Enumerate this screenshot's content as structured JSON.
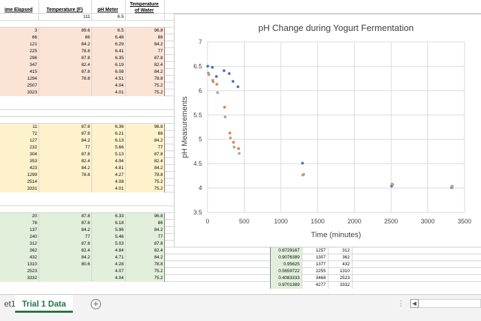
{
  "headers": {
    "time": "ime Elapsed",
    "temp": "Temperature (F)",
    "ph": "pH Meter",
    "water_line1": "Temperature",
    "water_line2": "of Water"
  },
  "subheader": {
    "temp": "111",
    "ph": "6.5"
  },
  "block1": [
    [
      "3",
      "89.6",
      "6.5",
      "96.8"
    ],
    [
      "66",
      "86",
      "6.48",
      "86"
    ],
    [
      "121",
      "84.2",
      "6.29",
      "84.2"
    ],
    [
      "225",
      "78.8",
      "6.41",
      "77"
    ],
    [
      "296",
      "87.8",
      "6.35",
      "87.8"
    ],
    [
      "347",
      "82.4",
      "6.19",
      "82.4"
    ],
    [
      "415",
      "87.8",
      "6.08",
      "84.2"
    ],
    [
      "1294",
      "78.8",
      "4.51",
      "78.8"
    ],
    [
      "2507",
      "",
      "4.04",
      "75.2"
    ],
    [
      "3323",
      "",
      "4.01",
      "75.2"
    ]
  ],
  "block2": [
    [
      "11",
      "87.8",
      "6.36",
      "96.8"
    ],
    [
      "72",
      "87.8",
      "6.21",
      "86"
    ],
    [
      "127",
      "84.2",
      "6.13",
      "84.2"
    ],
    [
      "232",
      "77",
      "5.66",
      "77"
    ],
    [
      "304",
      "87.8",
      "5.13",
      "87.8"
    ],
    [
      "353",
      "82.4",
      "4.94",
      "82.4"
    ],
    [
      "423",
      "84.2",
      "4.81",
      "84.2"
    ],
    [
      "1299",
      "78.8",
      "4.27",
      "78.8"
    ],
    [
      "2514",
      "",
      "4.08",
      "75.2"
    ],
    [
      "3331",
      "",
      "4.01",
      "75.2"
    ]
  ],
  "block3": [
    [
      "20",
      "87.8",
      "6.33",
      "96.8"
    ],
    [
      "78",
      "87.8",
      "6.18",
      "86"
    ],
    [
      "137",
      "84.2",
      "5.96",
      "84.2"
    ],
    [
      "240",
      "77",
      "5.46",
      "77"
    ],
    [
      "312",
      "87.8",
      "5.03",
      "87.8"
    ],
    [
      "362",
      "82.4",
      "4.84",
      "82.4"
    ],
    [
      "432",
      "84.2",
      "4.71",
      "84.2"
    ],
    [
      "1310",
      "80.6",
      "4.28",
      "78.8"
    ],
    [
      "2523",
      "",
      "4.07",
      "75.2"
    ],
    [
      "3332",
      "",
      "4.04",
      "75.2"
    ]
  ],
  "side_table": [
    [
      "0.8729167",
      "1257",
      "312"
    ],
    [
      "0.9076389",
      "1307",
      "362"
    ],
    [
      "0.95625",
      "1377",
      "432"
    ],
    [
      "0.5659722",
      "2255",
      "1310"
    ],
    [
      "0.4083333",
      "3468",
      "2523"
    ],
    [
      "0.9701389",
      "4277",
      "3332"
    ]
  ],
  "chart_data": {
    "type": "scatter",
    "title": "pH Change during Yogurt Fermentation",
    "xlabel": "Time (minutes)",
    "ylabel": "pH Measurements",
    "xlim": [
      0,
      3500
    ],
    "ylim": [
      3.5,
      7
    ],
    "xticks": [
      0,
      500,
      1000,
      1500,
      2000,
      2500,
      3000,
      3500
    ],
    "yticks": [
      3.5,
      4,
      4.5,
      5,
      5.5,
      6,
      6.5,
      7
    ],
    "series": [
      {
        "color": "#4472c4",
        "x": [
          3,
          66,
          121,
          225,
          296,
          347,
          415,
          1294,
          2507,
          3323
        ],
        "y": [
          6.5,
          6.48,
          6.29,
          6.41,
          6.35,
          6.19,
          6.08,
          4.51,
          4.04,
          4.01
        ]
      },
      {
        "color": "#ed7d31",
        "x": [
          11,
          72,
          127,
          232,
          304,
          353,
          423,
          1299,
          2514,
          3331
        ],
        "y": [
          6.36,
          6.21,
          6.13,
          5.66,
          5.13,
          4.94,
          4.81,
          4.27,
          4.08,
          4.01
        ]
      },
      {
        "color": "#a5a5a5",
        "x": [
          20,
          78,
          137,
          240,
          312,
          362,
          432,
          1310,
          2523,
          3332
        ],
        "y": [
          6.33,
          6.18,
          5.96,
          5.46,
          5.03,
          4.84,
          4.71,
          4.28,
          4.07,
          4.04
        ]
      }
    ],
    "grid": true
  },
  "tabs": {
    "partial": "et1",
    "active": "Trial 1 Data",
    "add": "+",
    "dots": "⋮",
    "scroll_left": "◀"
  }
}
